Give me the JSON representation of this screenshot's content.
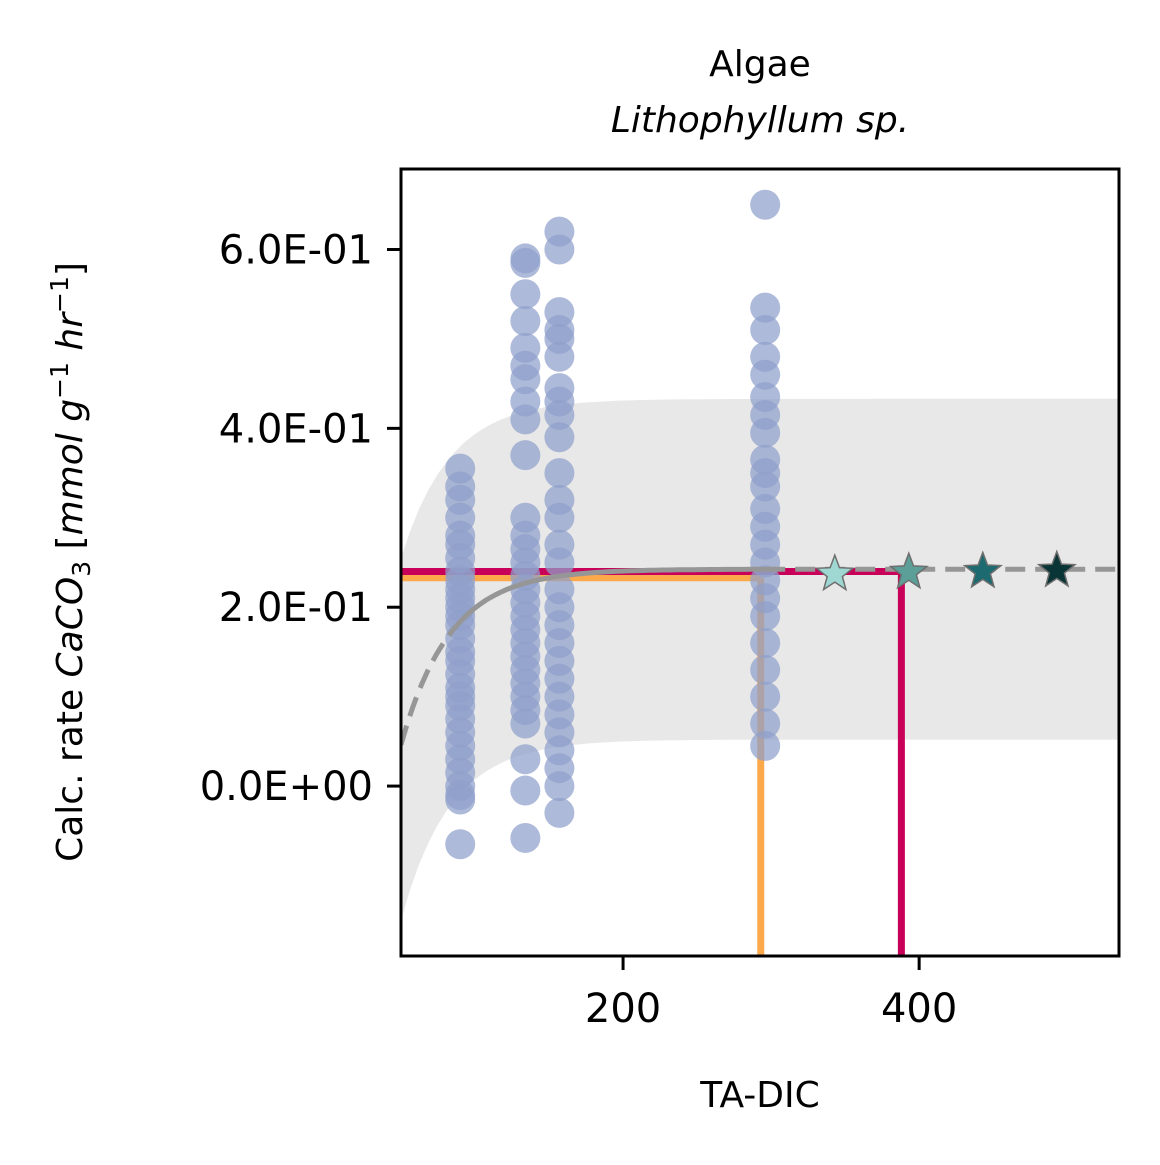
{
  "chart_data": {
    "type": "scatter",
    "title": "Algae",
    "subtitle": "Lithophyllum sp.",
    "xlabel": "TA-DIC",
    "ylabel": {
      "prefix": "Calc. rate ",
      "formula": "CaCO",
      "formula_sub": "3",
      "unit_open": " [",
      "unit_mmol": "mmol g",
      "unit_exp1": "−1",
      "unit_hr": " hr",
      "unit_exp2": "−1",
      "unit_close": "]"
    },
    "xlim": [
      50,
      535
    ],
    "ylim": [
      -0.19,
      0.69
    ],
    "xticks": [
      200,
      400
    ],
    "xtick_labels": [
      "200",
      "400"
    ],
    "yticks": [
      0.0,
      0.2,
      0.4,
      0.6
    ],
    "ytick_labels": [
      "0.0E+00",
      "2.0E-01",
      "4.0E-01",
      "6.0E-01"
    ],
    "grid": false,
    "colors": {
      "points": "#8fa0cb",
      "fit_line": "#969696",
      "confidence_band": "#e8e8e8",
      "threshold_orange": "#fca94c",
      "threshold_magenta": "#c8005a",
      "star_outline": "#6e6e6e"
    },
    "scatter_groups": [
      {
        "x": 90,
        "y": [
          -0.065,
          -0.015,
          -0.01,
          0.0,
          0.015,
          0.03,
          0.045,
          0.06,
          0.075,
          0.09,
          0.1,
          0.11,
          0.125,
          0.14,
          0.15,
          0.165,
          0.18,
          0.19,
          0.2,
          0.21,
          0.22,
          0.23,
          0.24,
          0.255,
          0.27,
          0.28,
          0.3,
          0.32,
          0.335,
          0.355
        ]
      },
      {
        "x": 134,
        "y": [
          -0.058,
          -0.005,
          0.03,
          0.07,
          0.085,
          0.1,
          0.115,
          0.13,
          0.145,
          0.16,
          0.175,
          0.19,
          0.205,
          0.22,
          0.235,
          0.25,
          0.265,
          0.28,
          0.3,
          0.37,
          0.41,
          0.43,
          0.455,
          0.47,
          0.49,
          0.52,
          0.55,
          0.585,
          0.59
        ]
      },
      {
        "x": 157,
        "y": [
          -0.03,
          0.0,
          0.02,
          0.04,
          0.06,
          0.08,
          0.1,
          0.12,
          0.14,
          0.16,
          0.18,
          0.2,
          0.22,
          0.25,
          0.27,
          0.3,
          0.32,
          0.35,
          0.39,
          0.415,
          0.43,
          0.445,
          0.48,
          0.5,
          0.51,
          0.53,
          0.6,
          0.62
        ]
      },
      {
        "x": 296,
        "y": [
          0.045,
          0.07,
          0.1,
          0.13,
          0.16,
          0.19,
          0.21,
          0.23,
          0.25,
          0.27,
          0.29,
          0.31,
          0.335,
          0.35,
          0.365,
          0.395,
          0.415,
          0.435,
          0.46,
          0.48,
          0.51,
          0.535,
          0.65
        ]
      }
    ],
    "fit_curve": {
      "model": "saturating",
      "a": 0.2425,
      "k": 0.0302,
      "x0": 43,
      "solid_from": 90,
      "solid_to": 296
    },
    "confidence_band": {
      "lower_start": -0.15,
      "lower_end": 0.052,
      "upper_start": 0.255,
      "upper_end": 0.433
    },
    "threshold_lines": [
      {
        "color_key": "threshold_orange",
        "x": 293,
        "y": 0.233
      },
      {
        "color_key": "threshold_magenta",
        "x": 388,
        "y": 0.24
      }
    ],
    "stars": [
      {
        "x": 343,
        "y": 0.237,
        "color": "#9fd8d2"
      },
      {
        "x": 393,
        "y": 0.239,
        "color": "#5c9e98"
      },
      {
        "x": 443,
        "y": 0.24,
        "color": "#1d6b70"
      },
      {
        "x": 493,
        "y": 0.241,
        "color": "#0a3536"
      }
    ]
  }
}
